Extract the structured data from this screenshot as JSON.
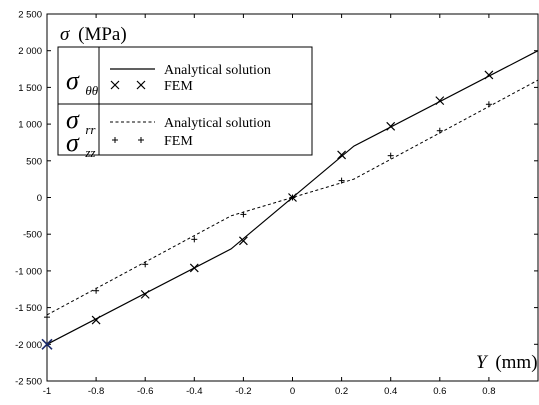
{
  "chart_data": {
    "type": "line",
    "ylabel_symbol": "σ",
    "ylabel_unit": "(MPa)",
    "xlabel_symbol": "Y",
    "xlabel_unit": "(mm)",
    "xlim": [
      -1,
      1
    ],
    "ylim": [
      -2500,
      2500
    ],
    "x_ticks": [
      -1,
      -0.8,
      -0.6,
      -0.4,
      -0.2,
      0,
      0.2,
      0.4,
      0.6,
      0.8
    ],
    "x_tick_labels": [
      "-1",
      "-0.8",
      "-0.6",
      "-0.4",
      "-0.2",
      "0",
      "0.2",
      "0.4",
      "0.6",
      "0.8"
    ],
    "y_ticks": [
      -2500,
      -2000,
      -1500,
      -1000,
      -500,
      0,
      500,
      1000,
      1500,
      2000,
      2500
    ],
    "y_tick_labels": [
      "-2 500",
      "-2 000",
      "-1 500",
      "-1 000",
      "-500",
      "0",
      "500",
      "1 000",
      "1 500",
      "2 000",
      "2 500"
    ],
    "grid": false,
    "legend_position": "top-left",
    "legend": {
      "group1": {
        "symbol": "σ",
        "subscript": "θθ",
        "entries": [
          {
            "marker": "line",
            "label": "Analytical solution"
          },
          {
            "marker": "x",
            "label": "FEM"
          }
        ]
      },
      "group2": {
        "symbol1": "σ",
        "subscript1": "rr",
        "symbol2": "σ",
        "subscript2": "zz",
        "entries": [
          {
            "marker": "dashed",
            "label": "Analytical solution"
          },
          {
            "marker": "plus",
            "label": "FEM"
          }
        ]
      }
    },
    "series": [
      {
        "kind": "line-solid",
        "x": [
          -1,
          -0.25,
          0.25,
          1
        ],
        "y": [
          -2000,
          -700,
          700,
          2000
        ]
      },
      {
        "kind": "scatter-x",
        "x": [
          -1,
          -0.8,
          -0.6,
          -0.4,
          -0.2,
          0,
          0.2,
          0.4,
          0.6,
          0.8
        ],
        "y": [
          -2000,
          -1670,
          -1320,
          -960,
          -590,
          0,
          580,
          970,
          1320,
          1670
        ]
      },
      {
        "kind": "line-dashed",
        "x": [
          -1,
          -0.25,
          0.25,
          1
        ],
        "y": [
          -1600,
          -250,
          250,
          1600
        ]
      },
      {
        "kind": "scatter-plus",
        "x": [
          -1,
          -0.8,
          -0.6,
          -0.4,
          -0.2,
          0,
          0.2,
          0.4,
          0.6,
          0.8
        ],
        "y": [
          -1630,
          -1270,
          -910,
          -570,
          -230,
          0,
          230,
          570,
          910,
          1270
        ]
      }
    ]
  }
}
